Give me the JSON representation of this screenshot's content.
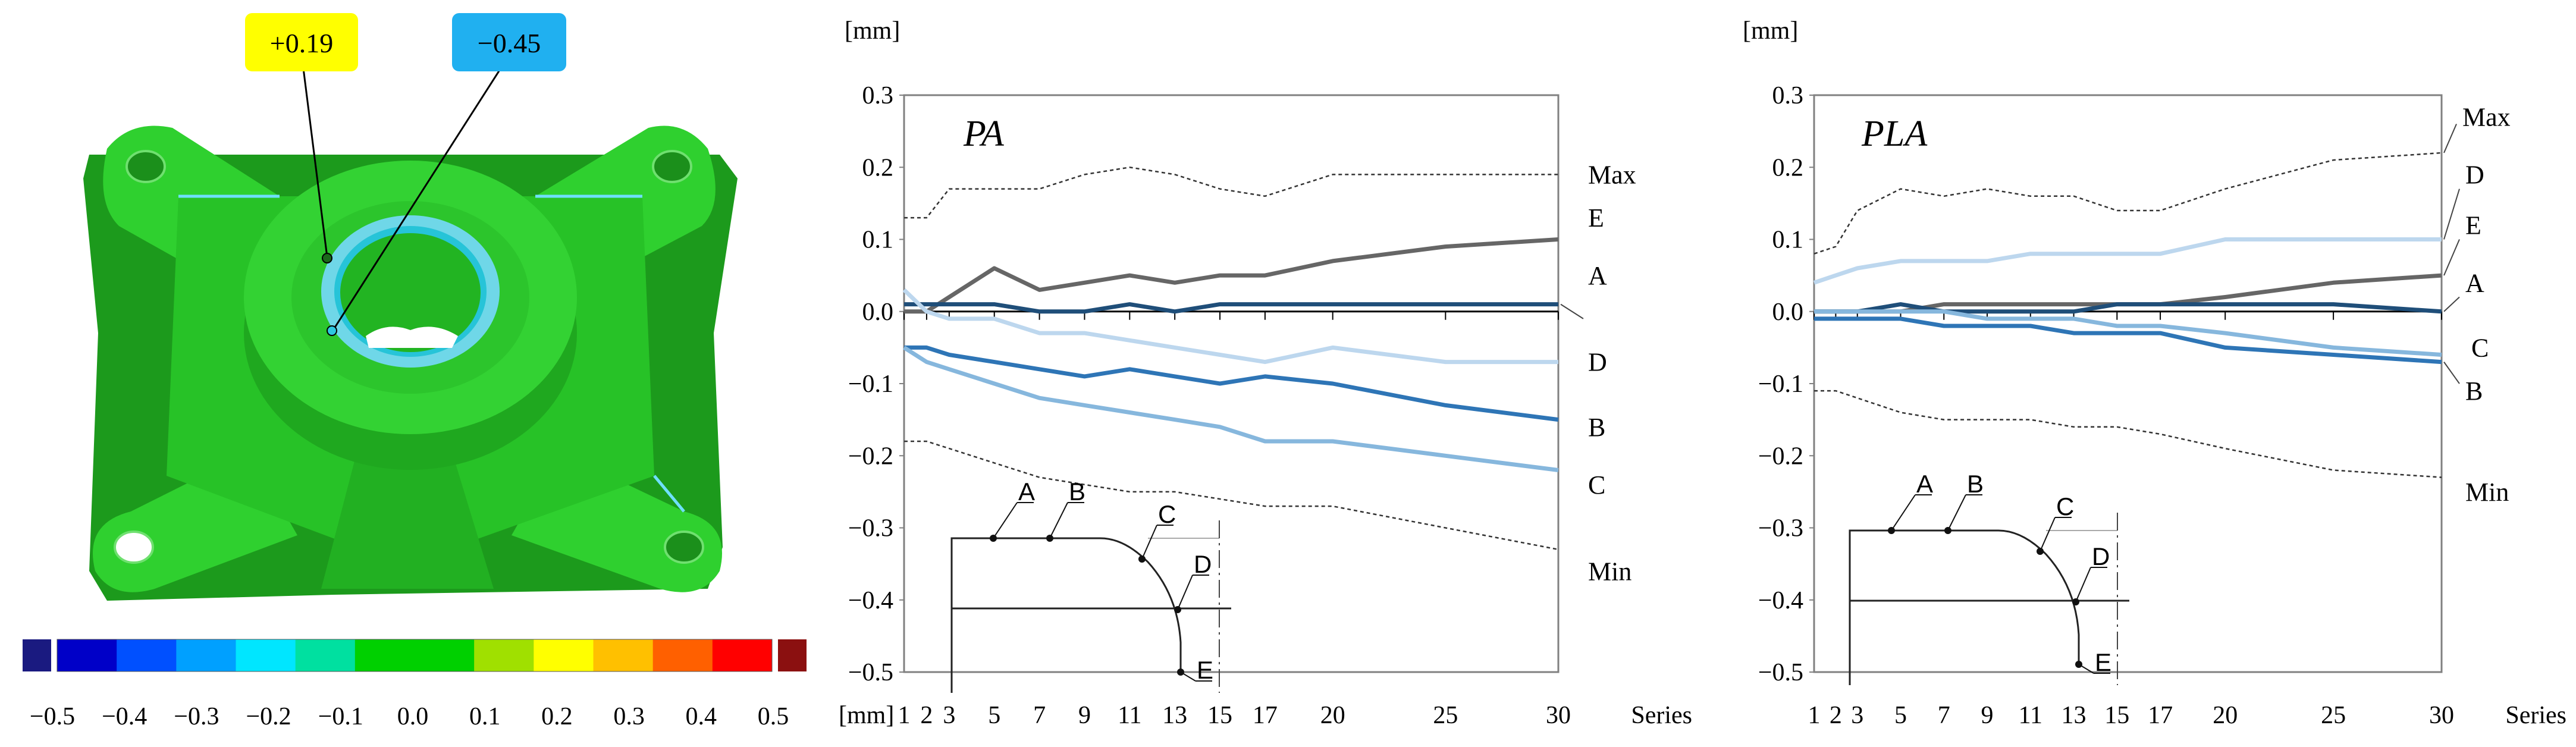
{
  "part_view": {
    "callout_pos": {
      "value": "+0.19",
      "color": "#ffff00"
    },
    "callout_neg": {
      "value": "−0.45",
      "color": "#20b0f0"
    },
    "colorbar": {
      "ticks": [
        "−0.5",
        "−0.4",
        "−0.3",
        "−0.2",
        "−0.1",
        "0.0",
        "0.1",
        "0.2",
        "0.3",
        "0.4",
        "0.5"
      ],
      "under_color": "#1a1a80",
      "over_color": "#8b1010",
      "stops": [
        "#0000c8",
        "#0050ff",
        "#00a0ff",
        "#00e6ff",
        "#00e0a0",
        "#00d000",
        "#00d000",
        "#a0e000",
        "#ffff00",
        "#ffc000",
        "#ff6000",
        "#ff0000"
      ]
    }
  },
  "chart_data": [
    {
      "type": "line",
      "title": "PA",
      "ylabel": "[mm]",
      "xlabel": "Series",
      "x_unit_label": "[mm]",
      "x": [
        1,
        2,
        3,
        5,
        7,
        9,
        11,
        13,
        15,
        17,
        20,
        25,
        30
      ],
      "x_tick_labels": [
        "1",
        "2",
        "3",
        "5",
        "7",
        "9",
        "11",
        "13",
        "15",
        "17",
        "20",
        "25",
        "30"
      ],
      "ylim": [
        -0.5,
        0.3
      ],
      "y_ticks": [
        "0.3",
        "0.2",
        "0.1",
        "0.0",
        "-0.1",
        "-0.2",
        "-0.3",
        "-0.4",
        "-0.5"
      ],
      "series": [
        {
          "name": "Max",
          "label": "Max",
          "style": "dotted",
          "color": "#333333",
          "values": [
            0.13,
            0.13,
            0.17,
            0.17,
            0.17,
            0.19,
            0.2,
            0.19,
            0.17,
            0.16,
            0.19,
            0.19,
            0.19
          ]
        },
        {
          "name": "E",
          "label": "E",
          "style": "solid",
          "color": "#666666",
          "values": [
            0.0,
            0.0,
            0.02,
            0.06,
            0.03,
            0.04,
            0.05,
            0.04,
            0.05,
            0.05,
            0.07,
            0.09,
            0.1
          ]
        },
        {
          "name": "A",
          "label": "A",
          "style": "solid",
          "color": "#1f4e79",
          "values": [
            0.01,
            0.01,
            0.01,
            0.01,
            0.0,
            0.0,
            0.01,
            0.0,
            0.01,
            0.01,
            0.01,
            0.01,
            0.01
          ]
        },
        {
          "name": "D",
          "label": "D",
          "style": "solid",
          "color": "#bdd7ee",
          "values": [
            0.03,
            0.0,
            -0.01,
            -0.01,
            -0.03,
            -0.03,
            -0.04,
            -0.05,
            -0.06,
            -0.07,
            -0.05,
            -0.07,
            -0.07
          ]
        },
        {
          "name": "B",
          "label": "B",
          "style": "solid",
          "color": "#2e75b6",
          "values": [
            -0.05,
            -0.05,
            -0.06,
            -0.07,
            -0.08,
            -0.09,
            -0.08,
            -0.09,
            -0.1,
            -0.09,
            -0.1,
            -0.13,
            -0.15
          ]
        },
        {
          "name": "C",
          "label": "C",
          "style": "solid",
          "color": "#86b7dd",
          "values": [
            -0.05,
            -0.07,
            -0.08,
            -0.1,
            -0.12,
            -0.13,
            -0.14,
            -0.15,
            -0.16,
            -0.18,
            -0.18,
            -0.2,
            -0.22
          ]
        },
        {
          "name": "Min",
          "label": "Min",
          "style": "dotted",
          "color": "#333333",
          "values": [
            -0.18,
            -0.18,
            -0.19,
            -0.21,
            -0.23,
            -0.24,
            -0.25,
            -0.25,
            -0.26,
            -0.27,
            -0.27,
            -0.3,
            -0.33
          ]
        }
      ],
      "inset_labels": [
        "A",
        "B",
        "C",
        "D",
        "E"
      ]
    },
    {
      "type": "line",
      "title": "PLA",
      "ylabel": "[mm]",
      "xlabel": "Series",
      "x_unit_label": "",
      "x": [
        1,
        2,
        3,
        5,
        7,
        9,
        11,
        13,
        15,
        17,
        20,
        25,
        30
      ],
      "x_tick_labels": [
        "1",
        "2",
        "3",
        "5",
        "7",
        "9",
        "11",
        "13",
        "15",
        "17",
        "20",
        "25",
        "30"
      ],
      "ylim": [
        -0.5,
        0.3
      ],
      "y_ticks": [
        "0.3",
        "0.2",
        "0.1",
        "0.0",
        "-0.1",
        "-0.2",
        "-0.3",
        "-0.4",
        "-0.5"
      ],
      "series": [
        {
          "name": "Max",
          "label": "Max",
          "style": "dotted",
          "color": "#333333",
          "values": [
            0.08,
            0.09,
            0.14,
            0.17,
            0.16,
            0.17,
            0.16,
            0.16,
            0.14,
            0.14,
            0.17,
            0.21,
            0.22
          ]
        },
        {
          "name": "D",
          "label": "D",
          "style": "solid",
          "color": "#bdd7ee",
          "values": [
            0.04,
            0.05,
            0.06,
            0.07,
            0.07,
            0.07,
            0.08,
            0.08,
            0.08,
            0.08,
            0.1,
            0.1,
            0.1
          ]
        },
        {
          "name": "E",
          "label": "E",
          "style": "solid",
          "color": "#666666",
          "values": [
            0.0,
            0.0,
            0.0,
            0.0,
            0.01,
            0.01,
            0.01,
            0.01,
            0.01,
            0.01,
            0.02,
            0.04,
            0.05
          ]
        },
        {
          "name": "A",
          "label": "A",
          "style": "solid",
          "color": "#1f4e79",
          "values": [
            0.0,
            0.0,
            0.0,
            0.01,
            0.0,
            0.0,
            0.0,
            0.0,
            0.01,
            0.01,
            0.01,
            0.01,
            0.0
          ]
        },
        {
          "name": "C",
          "label": "C",
          "style": "solid",
          "color": "#86b7dd",
          "values": [
            0.0,
            0.0,
            0.0,
            0.0,
            0.0,
            -0.01,
            -0.01,
            -0.01,
            -0.02,
            -0.02,
            -0.03,
            -0.05,
            -0.06
          ]
        },
        {
          "name": "B",
          "label": "B",
          "style": "solid",
          "color": "#2e75b6",
          "values": [
            -0.01,
            -0.01,
            -0.01,
            -0.01,
            -0.02,
            -0.02,
            -0.02,
            -0.03,
            -0.03,
            -0.03,
            -0.05,
            -0.06,
            -0.07
          ]
        },
        {
          "name": "Min",
          "label": "Min",
          "style": "dotted",
          "color": "#333333",
          "values": [
            -0.11,
            -0.11,
            -0.12,
            -0.14,
            -0.15,
            -0.15,
            -0.15,
            -0.16,
            -0.16,
            -0.17,
            -0.19,
            -0.22,
            -0.23
          ]
        }
      ],
      "inset_labels": [
        "A",
        "B",
        "C",
        "D",
        "E"
      ]
    }
  ]
}
